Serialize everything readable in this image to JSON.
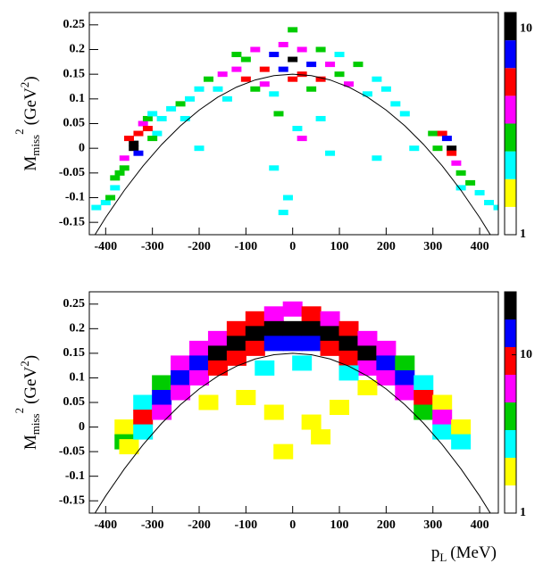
{
  "chart_data": [
    {
      "type": "heatmap",
      "xlim": [
        -435,
        440
      ],
      "ylim": [
        -0.175,
        0.275
      ],
      "xticks": [
        -400,
        -300,
        -200,
        -100,
        0,
        100,
        200,
        300,
        400
      ],
      "yticks": [
        0.25,
        0.2,
        0.15,
        0.1,
        0.05,
        0,
        -0.05,
        -0.1,
        -0.15
      ],
      "y_label": "M",
      "y_label_sub": "miss",
      "y_label_sup": "2",
      "y_label_unit": "(GeV",
      "y_label_unit_sup": "2",
      "y_label_close": ")",
      "zlim": [
        1,
        12
      ],
      "zticks": [
        1,
        10
      ],
      "log_z": true,
      "palette": [
        "#ffffff",
        "#ffff00",
        "#00ffff",
        "#00cc00",
        "#ff00ff",
        "#ff0000",
        "#0000ff",
        "#000000"
      ],
      "curve": {
        "x": [
          -440,
          -400,
          -360,
          -320,
          -280,
          -240,
          -200,
          -160,
          -120,
          -80,
          -40,
          0,
          40,
          80,
          120,
          160,
          200,
          240,
          280,
          320,
          360,
          400,
          440
        ],
        "y": [
          -0.2012,
          -0.1402,
          -0.0851,
          -0.0358,
          0.0078,
          0.0455,
          0.0774,
          0.1036,
          0.1239,
          0.1384,
          0.1471,
          0.15,
          0.1471,
          0.1384,
          0.1239,
          0.1036,
          0.0774,
          0.0455,
          0.0078,
          -0.0358,
          -0.0851,
          -0.1402,
          -0.2012
        ]
      },
      "cells": [
        [
          -400,
          -0.11,
          2
        ],
        [
          -380,
          -0.08,
          2
        ],
        [
          -380,
          -0.06,
          3
        ],
        [
          -360,
          -0.04,
          3
        ],
        [
          -360,
          -0.02,
          4
        ],
        [
          -340,
          0.0,
          10
        ],
        [
          -340,
          0.01,
          12
        ],
        [
          -350,
          0.02,
          6
        ],
        [
          -330,
          0.03,
          5
        ],
        [
          -320,
          0.05,
          4
        ],
        [
          -310,
          0.06,
          3
        ],
        [
          -300,
          0.07,
          2
        ],
        [
          -290,
          0.03,
          2
        ],
        [
          -420,
          -0.12,
          2
        ],
        [
          -390,
          -0.1,
          3
        ],
        [
          -370,
          -0.05,
          3
        ],
        [
          -330,
          -0.01,
          7
        ],
        [
          -310,
          0.04,
          5
        ],
        [
          -300,
          0.02,
          3
        ],
        [
          -280,
          0.06,
          2
        ],
        [
          -260,
          0.08,
          2
        ],
        [
          -240,
          0.09,
          3
        ],
        [
          -220,
          0.1,
          2
        ],
        [
          -200,
          0.12,
          2
        ],
        [
          -230,
          0.06,
          2
        ],
        [
          -180,
          0.14,
          3
        ],
        [
          -160,
          0.12,
          2
        ],
        [
          -150,
          0.15,
          4
        ],
        [
          -140,
          0.1,
          2
        ],
        [
          -120,
          0.16,
          4
        ],
        [
          -120,
          0.19,
          3
        ],
        [
          -100,
          0.14,
          5
        ],
        [
          -100,
          0.18,
          3
        ],
        [
          -80,
          0.12,
          3
        ],
        [
          -80,
          0.2,
          4
        ],
        [
          -60,
          0.16,
          6
        ],
        [
          -60,
          0.13,
          4
        ],
        [
          -40,
          0.19,
          8
        ],
        [
          -40,
          0.11,
          2
        ],
        [
          -20,
          0.16,
          7
        ],
        [
          -20,
          0.21,
          4
        ],
        [
          0,
          0.14,
          5
        ],
        [
          0,
          0.18,
          9
        ],
        [
          0,
          0.24,
          3
        ],
        [
          20,
          0.15,
          6
        ],
        [
          20,
          0.2,
          4
        ],
        [
          40,
          0.17,
          7
        ],
        [
          40,
          0.12,
          3
        ],
        [
          60,
          0.2,
          3
        ],
        [
          60,
          0.14,
          5
        ],
        [
          80,
          0.17,
          4
        ],
        [
          100,
          0.15,
          3
        ],
        [
          100,
          0.19,
          2
        ],
        [
          120,
          0.13,
          4
        ],
        [
          140,
          0.17,
          3
        ],
        [
          160,
          0.11,
          2
        ],
        [
          180,
          0.14,
          2
        ],
        [
          200,
          0.12,
          2
        ],
        [
          220,
          0.09,
          2
        ],
        [
          240,
          0.07,
          2
        ],
        [
          -30,
          0.07,
          3
        ],
        [
          10,
          0.04,
          2
        ],
        [
          60,
          0.06,
          2
        ],
        [
          -200,
          0.0,
          2
        ],
        [
          -40,
          -0.04,
          2
        ],
        [
          -10,
          -0.1,
          2
        ],
        [
          80,
          -0.01,
          2
        ],
        [
          20,
          0.02,
          4
        ],
        [
          300,
          0.03,
          3
        ],
        [
          320,
          0.03,
          6
        ],
        [
          330,
          0.02,
          8
        ],
        [
          340,
          0.0,
          10
        ],
        [
          340,
          -0.01,
          5
        ],
        [
          350,
          -0.03,
          4
        ],
        [
          360,
          -0.05,
          3
        ],
        [
          380,
          -0.07,
          3
        ],
        [
          400,
          -0.09,
          2
        ],
        [
          420,
          -0.11,
          2
        ],
        [
          440,
          -0.12,
          2
        ],
        [
          310,
          0.0,
          3
        ],
        [
          360,
          -0.08,
          2
        ],
        [
          260,
          0.0,
          2
        ],
        [
          -20,
          -0.13,
          2
        ],
        [
          180,
          -0.02,
          2
        ]
      ]
    },
    {
      "type": "heatmap",
      "xlim": [
        -435,
        440
      ],
      "ylim": [
        -0.175,
        0.275
      ],
      "xticks": [
        -400,
        -300,
        -200,
        -100,
        0,
        100,
        200,
        300,
        400
      ],
      "yticks": [
        0.25,
        0.2,
        0.15,
        0.1,
        0.05,
        0,
        -0.05,
        -0.1,
        -0.15
      ],
      "y_label": "M",
      "y_label_sub": "miss",
      "y_label_sup": "2",
      "y_label_unit": "(GeV",
      "y_label_unit_sup": "2",
      "y_label_close": ")",
      "x_label": "p",
      "x_label_sub": "L",
      "x_label_unit": "(MeV)",
      "zlim": [
        1,
        25
      ],
      "zticks": [
        1,
        10
      ],
      "log_z": true,
      "palette": [
        "#ffffff",
        "#ffff00",
        "#00ffff",
        "#00cc00",
        "#ff00ff",
        "#ff0000",
        "#0000ff",
        "#000000"
      ],
      "curve": {
        "x": [
          -440,
          -400,
          -360,
          -320,
          -280,
          -240,
          -200,
          -160,
          -120,
          -80,
          -40,
          0,
          40,
          80,
          120,
          160,
          200,
          240,
          280,
          320,
          360,
          400,
          440
        ],
        "y": [
          -0.2012,
          -0.1402,
          -0.0851,
          -0.0358,
          0.0078,
          0.0455,
          0.0774,
          0.1036,
          0.1239,
          0.1384,
          0.1471,
          0.15,
          0.1471,
          0.1384,
          0.1239,
          0.1036,
          0.0774,
          0.0455,
          0.0078,
          -0.0358,
          -0.0851,
          -0.1402,
          -0.2012
        ]
      },
      "cells": [
        [
          -360,
          0.0,
          2
        ],
        [
          -360,
          -0.03,
          4
        ],
        [
          -350,
          -0.04,
          2
        ],
        [
          -320,
          0.05,
          3
        ],
        [
          -320,
          0.02,
          8
        ],
        [
          -320,
          -0.01,
          3
        ],
        [
          -280,
          0.09,
          4
        ],
        [
          -280,
          0.06,
          12
        ],
        [
          -280,
          0.03,
          5
        ],
        [
          -240,
          0.13,
          5
        ],
        [
          -240,
          0.1,
          14
        ],
        [
          -240,
          0.07,
          6
        ],
        [
          -200,
          0.16,
          6
        ],
        [
          -200,
          0.13,
          16
        ],
        [
          -200,
          0.1,
          7
        ],
        [
          -160,
          0.18,
          7
        ],
        [
          -160,
          0.15,
          20
        ],
        [
          -160,
          0.12,
          8
        ],
        [
          -120,
          0.2,
          9
        ],
        [
          -120,
          0.17,
          22
        ],
        [
          -120,
          0.14,
          8
        ],
        [
          -80,
          0.22,
          8
        ],
        [
          -80,
          0.19,
          24
        ],
        [
          -80,
          0.16,
          10
        ],
        [
          -40,
          0.23,
          7
        ],
        [
          -40,
          0.2,
          25
        ],
        [
          -40,
          0.17,
          12
        ],
        [
          0,
          0.24,
          5
        ],
        [
          0,
          0.2,
          24
        ],
        [
          0,
          0.17,
          14
        ],
        [
          40,
          0.23,
          8
        ],
        [
          40,
          0.2,
          23
        ],
        [
          40,
          0.17,
          12
        ],
        [
          80,
          0.22,
          7
        ],
        [
          80,
          0.19,
          25
        ],
        [
          80,
          0.16,
          11
        ],
        [
          120,
          0.2,
          8
        ],
        [
          120,
          0.17,
          21
        ],
        [
          120,
          0.14,
          9
        ],
        [
          160,
          0.18,
          6
        ],
        [
          160,
          0.15,
          19
        ],
        [
          160,
          0.12,
          7
        ],
        [
          200,
          0.16,
          5
        ],
        [
          200,
          0.13,
          15
        ],
        [
          200,
          0.1,
          6
        ],
        [
          240,
          0.13,
          4
        ],
        [
          240,
          0.1,
          13
        ],
        [
          240,
          0.07,
          5
        ],
        [
          280,
          0.09,
          3
        ],
        [
          280,
          0.06,
          10
        ],
        [
          280,
          0.03,
          4
        ],
        [
          320,
          0.05,
          2
        ],
        [
          320,
          0.02,
          7
        ],
        [
          320,
          -0.01,
          3
        ],
        [
          360,
          0.0,
          2
        ],
        [
          360,
          -0.03,
          3
        ],
        [
          -100,
          0.06,
          2
        ],
        [
          -40,
          0.03,
          2
        ],
        [
          40,
          0.01,
          2
        ],
        [
          60,
          -0.02,
          2
        ],
        [
          -20,
          -0.05,
          2
        ],
        [
          100,
          0.04,
          2
        ],
        [
          160,
          0.08,
          2
        ],
        [
          -180,
          0.05,
          2
        ],
        [
          120,
          0.11,
          3
        ],
        [
          -60,
          0.12,
          3
        ],
        [
          20,
          0.13,
          3
        ]
      ]
    }
  ]
}
